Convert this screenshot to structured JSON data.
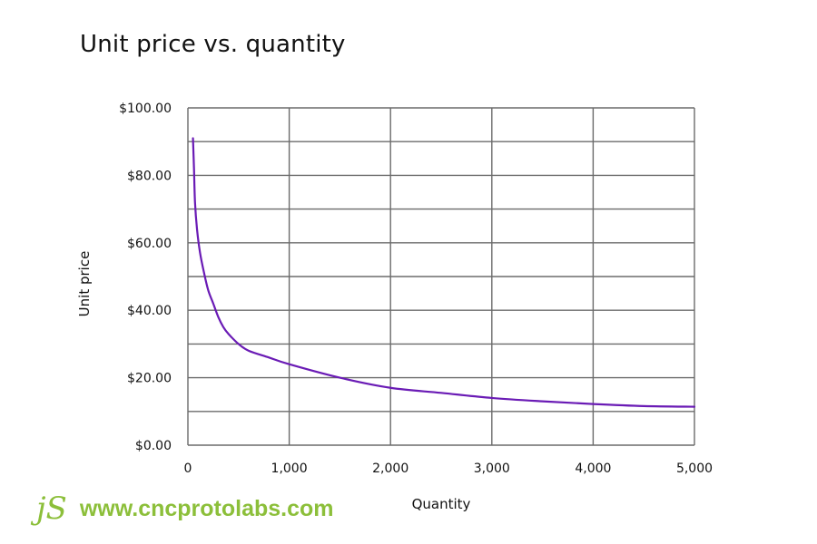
{
  "chart_data": {
    "type": "line",
    "title": "Unit price vs. quantity",
    "xlabel": "Quantity",
    "ylabel": "Unit price",
    "xlim": [
      0,
      5000
    ],
    "ylim": [
      0,
      100
    ],
    "x_ticks": [
      0,
      1000,
      2000,
      3000,
      4000,
      5000
    ],
    "x_tick_labels": [
      "0",
      "1,000",
      "2,000",
      "3,000",
      "4,000",
      "5,000"
    ],
    "y_ticks": [
      0,
      20,
      40,
      60,
      80,
      100
    ],
    "y_tick_labels": [
      "$0.00",
      "$20.00",
      "$40.00",
      "$60.00",
      "$80.00",
      "$100.00"
    ],
    "grid": true,
    "legend": "none",
    "series": [
      {
        "color": "#6a1bb5",
        "points": [
          [
            50,
            91
          ],
          [
            60,
            82
          ],
          [
            70,
            72
          ],
          [
            90,
            64
          ],
          [
            120,
            57
          ],
          [
            160,
            51
          ],
          [
            200,
            46
          ],
          [
            250,
            42
          ],
          [
            300,
            38
          ],
          [
            350,
            35
          ],
          [
            400,
            33
          ],
          [
            500,
            30
          ],
          [
            600,
            28
          ],
          [
            800,
            26
          ],
          [
            1000,
            24
          ],
          [
            1500,
            20
          ],
          [
            2000,
            17
          ],
          [
            2500,
            15.5
          ],
          [
            3000,
            14
          ],
          [
            3500,
            13
          ],
          [
            4000,
            12.2
          ],
          [
            4500,
            11.6
          ],
          [
            5000,
            11.4
          ]
        ]
      }
    ]
  },
  "colors": {
    "grid": "#6b6b6b",
    "line": "#6a1bb5",
    "watermark": "#8cbf3a"
  },
  "watermark": {
    "logo": "jS",
    "url": "www.cncprotolabs.com"
  }
}
